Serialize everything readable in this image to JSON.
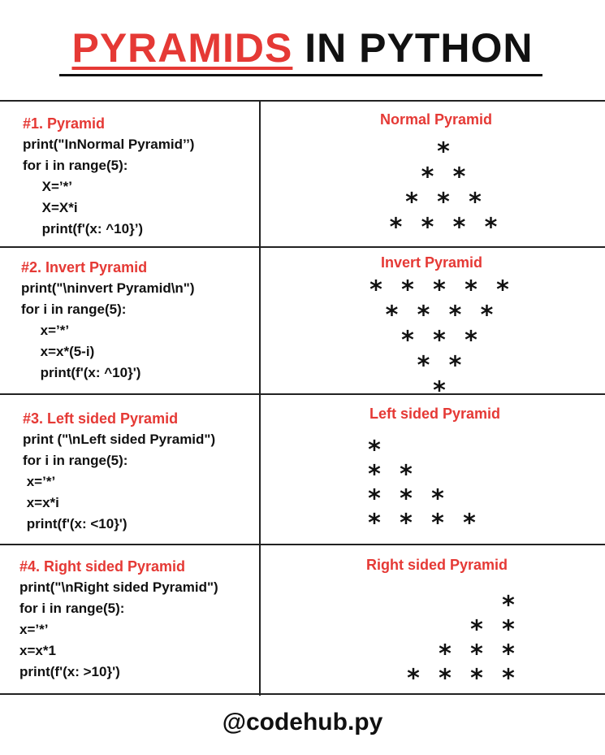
{
  "title": {
    "part1": "PYRAMIDS",
    "part2": " IN PYTHON"
  },
  "sections": [
    {
      "heading": "#1. Pyramid",
      "lines": [
        "print(\"InNormal Pyramid’’)",
        "for i in range(5):",
        "     X=’*’",
        "     X=X*i",
        "     print(f'(x: ^10}’)"
      ],
      "right_title": "Normal Pyramid",
      "stars": [
        1,
        2,
        3,
        4
      ]
    },
    {
      "heading": "#2. Invert Pyramid",
      "lines": [
        "print(\"\\ninvert Pyramid\\n\")",
        "for i in range(5):",
        "     x=’*’",
        "     x=x*(5-i)",
        "     print(f'(x: ^10}')"
      ],
      "right_title": "Invert Pyramid",
      "stars": [
        5,
        4,
        3,
        2,
        1
      ]
    },
    {
      "heading": "#3. Left sided Pyramid",
      "lines": [
        "print (\"\\nLeft sided Pyramid\")",
        "for i in range(5):",
        " x=’*’",
        " x=x*i",
        " print(f'(x: <10}')"
      ],
      "right_title": "Left sided Pyramid",
      "stars": [
        1,
        2,
        3,
        4
      ]
    },
    {
      "heading": "#4. Right sided Pyramid",
      "lines": [
        "print(\"\\nRight sided Pyramid\")",
        "for i in range(5):",
        "x=’*’",
        "x=x*1",
        "print(f'(x: >10}')"
      ],
      "right_title": "Right sided Pyramid",
      "stars": [
        1,
        2,
        3,
        4
      ]
    }
  ],
  "star_glyph": "*",
  "footer": "@codehub.py",
  "colors": {
    "accent": "#e53935",
    "text": "#111111",
    "background": "#ffffff"
  }
}
